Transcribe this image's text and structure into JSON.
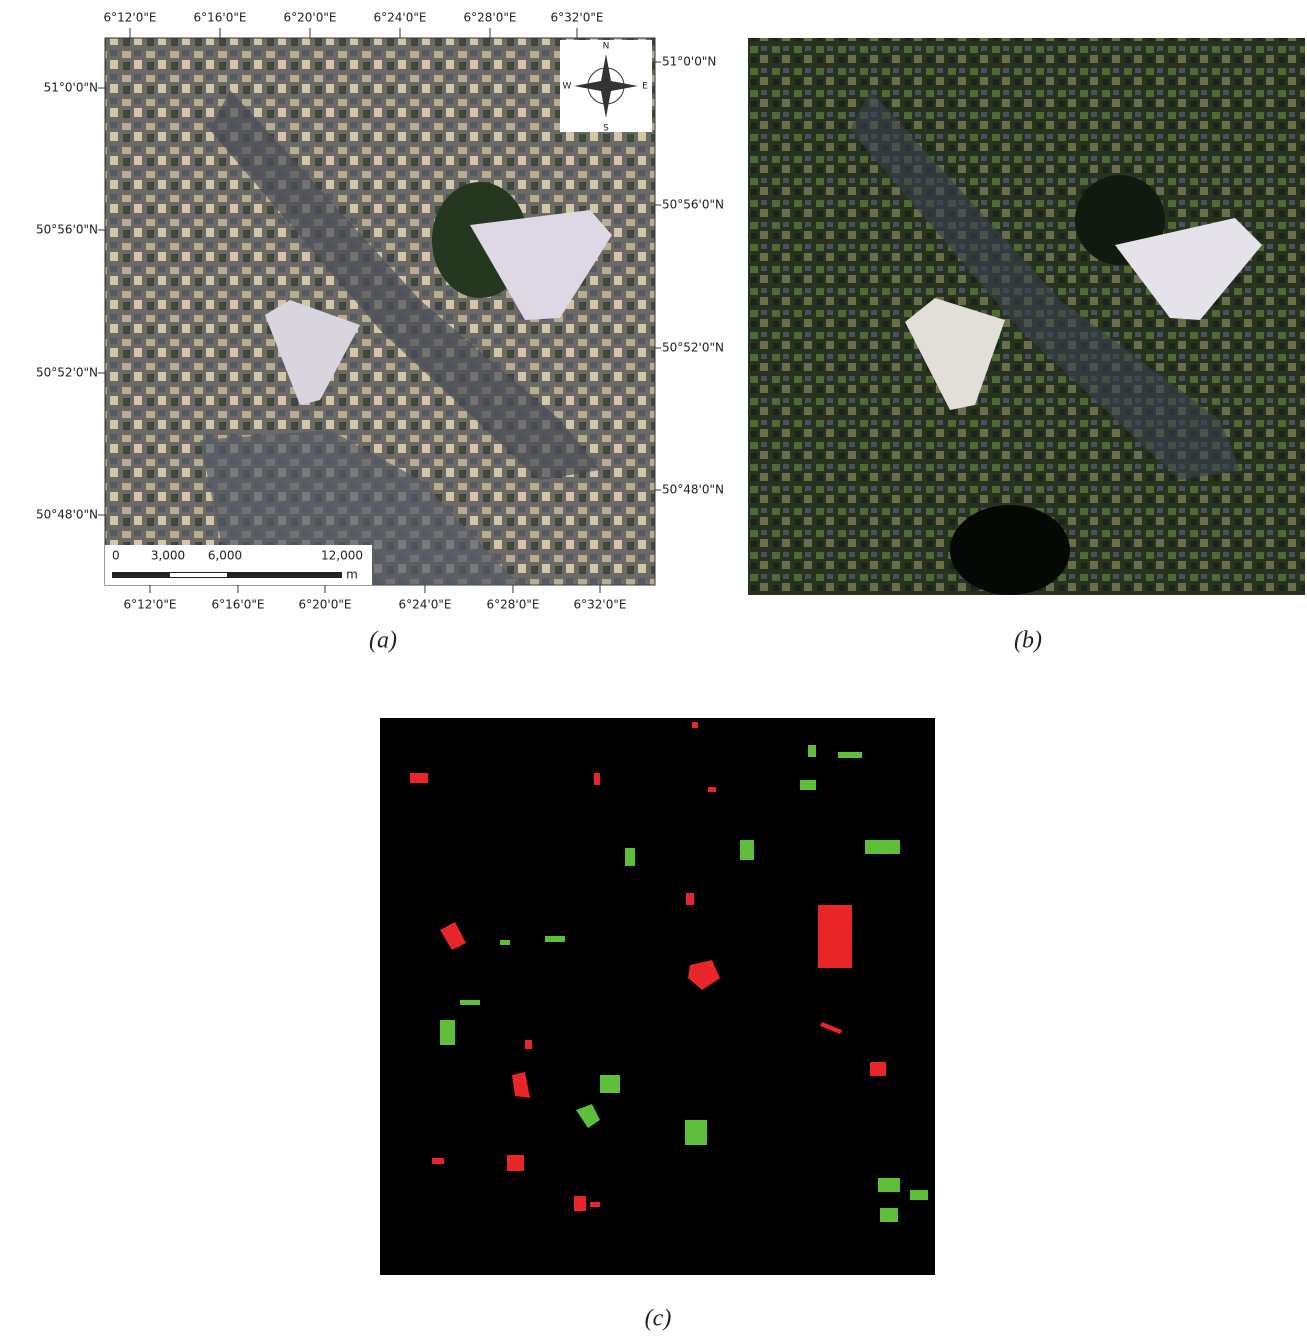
{
  "panels": [
    {
      "caption": "(a)",
      "top_labels": [
        "6°12'0\"E",
        "6°16'0\"E",
        "6°20'0\"E",
        "6°24'0\"E",
        "6°28'0\"E",
        "6°32'0\"E"
      ],
      "bottom_labels": [
        "6°12'0\"E",
        "6°16'0\"E",
        "6°20'0\"E",
        "6°24'0\"E",
        "6°28'0\"E",
        "6°32'0\"E"
      ],
      "left_labels": [
        "51°0'0\"N",
        "50°56'0\"N",
        "50°52'0\"N",
        "50°48'0\"N"
      ],
      "right_labels": [
        "51°0'0\"N",
        "50°56'0\"N",
        "50°52'0\"N",
        "50°48'0\"N"
      ],
      "scale_bar": {
        "labels": [
          "0",
          "3,000",
          "6,000",
          "12,000"
        ],
        "unit": "m"
      },
      "compass": {
        "n": "N",
        "s": "S",
        "e": "E",
        "w": "W"
      }
    },
    {
      "caption": "(b)"
    },
    {
      "caption": "(c)"
    }
  ]
}
